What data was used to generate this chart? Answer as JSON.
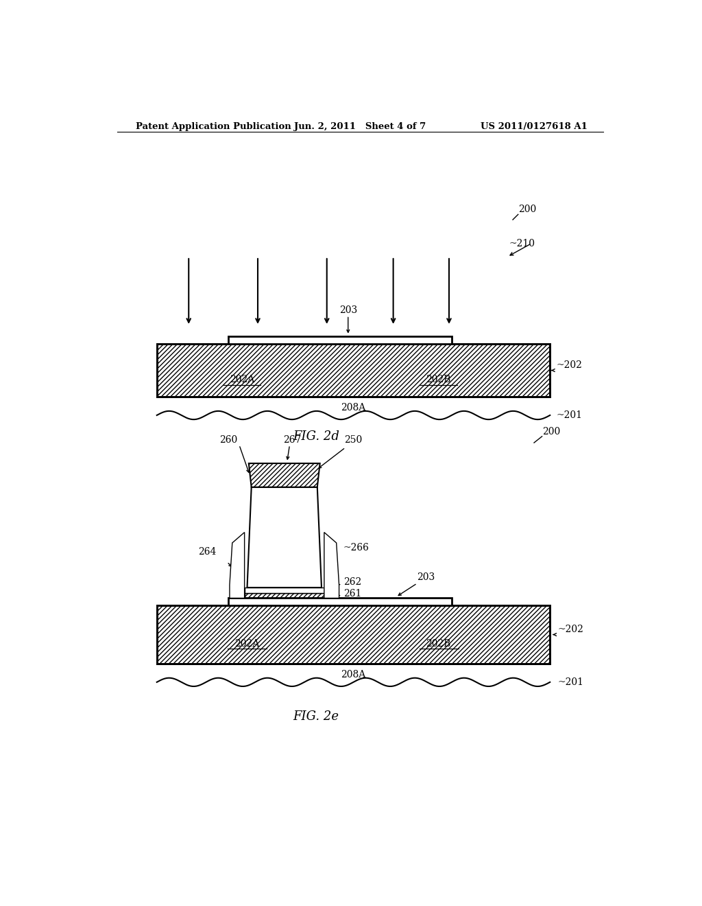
{
  "header_left": "Patent Application Publication",
  "header_mid": "Jun. 2, 2011   Sheet 4 of 7",
  "header_right": "US 2011/0127618 A1",
  "fig2d_label": "FIG. 2d",
  "fig2e_label": "FIG. 2e",
  "bg_color": "#ffffff",
  "line_color": "#000000"
}
